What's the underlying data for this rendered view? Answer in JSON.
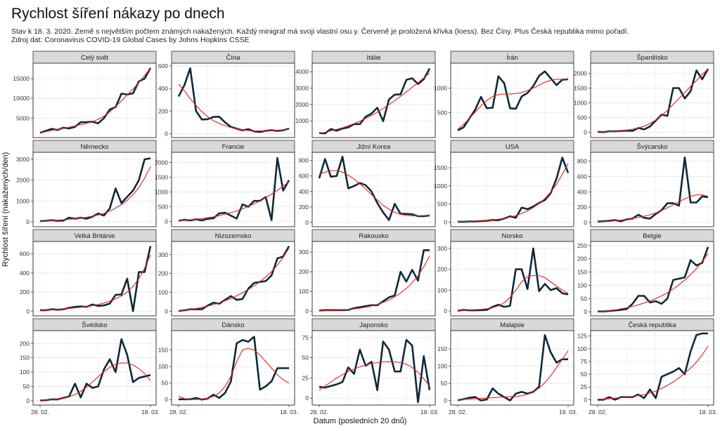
{
  "title": "Rychlost šíření nákazy po dnech",
  "subtitle_line1": "Stav k 18. 3. 2020. Země s největším počtem známých nakažených. Každý minigraf má svoji vlastní osu y. Červeně je proložená křivka (loess). Bez Číny. Plus Česká republika mimo pořadí.",
  "subtitle_line2": "Zdroj dat: Coronavirus COVID-19 Global Cases by Johns Hopkins CSSE",
  "ylabel": "Rychlost šíření (nakažených/den)",
  "xlabel": "Datum (posledních 20 dnů)",
  "x_tick_first": "28. 02.",
  "x_tick_last": "18. 03.",
  "colors": {
    "line": "#0d2a3a",
    "loess": "#e8201f",
    "strip": "#d9d9d9",
    "grid": "#e5e5e5"
  },
  "chart_data": [
    {
      "type": "line",
      "panel": "Celý svět",
      "yticks": [
        5000,
        10000,
        15000
      ],
      "ylim": [
        800,
        18200
      ],
      "values": [
        1300,
        1800,
        2300,
        2000,
        2600,
        2400,
        2800,
        4000,
        4000,
        4100,
        3700,
        5000,
        7200,
        7800,
        11200,
        11000,
        11300,
        14300,
        15000,
        17700
      ],
      "loess": [
        1200,
        1600,
        1900,
        2200,
        2400,
        2700,
        3000,
        3400,
        3700,
        4100,
        4700,
        5500,
        6600,
        7900,
        9400,
        10900,
        12400,
        14000,
        15800,
        17600
      ]
    },
    {
      "type": "line",
      "panel": "Čína",
      "yticks": [
        0,
        200,
        400,
        600
      ],
      "ylim": [
        -10,
        600
      ],
      "values": [
        330,
        430,
        580,
        200,
        125,
        128,
        148,
        150,
        100,
        60,
        45,
        30,
        40,
        20,
        15,
        25,
        30,
        25,
        30,
        45
      ],
      "loess": [
        440,
        380,
        310,
        250,
        195,
        150,
        115,
        90,
        70,
        55,
        45,
        35,
        28,
        25,
        24,
        25,
        27,
        30,
        34,
        38
      ]
    },
    {
      "type": "line",
      "panel": "Itálie",
      "yticks": [
        1000,
        2000,
        3000,
        4000
      ],
      "ylim": [
        150,
        4350
      ],
      "values": [
        250,
        240,
        500,
        400,
        530,
        600,
        800,
        800,
        1250,
        1450,
        1800,
        980,
        2300,
        2600,
        2620,
        3500,
        3600,
        3250,
        3550,
        4200
      ],
      "loess": [
        220,
        300,
        390,
        480,
        580,
        700,
        830,
        980,
        1150,
        1330,
        1530,
        1750,
        1990,
        2240,
        2500,
        2770,
        3050,
        3330,
        3620,
        3920
      ]
    },
    {
      "type": "line",
      "panel": "Írán",
      "yticks": [
        500,
        1000
      ],
      "ylim": [
        50,
        1450
      ],
      "values": [
        140,
        200,
        380,
        560,
        820,
        590,
        600,
        1240,
        1100,
        590,
        580,
        830,
        900,
        1040,
        1250,
        1340,
        1200,
        1060,
        1170,
        1180
      ],
      "loess": [
        160,
        260,
        380,
        510,
        640,
        750,
        830,
        870,
        880,
        880,
        890,
        910,
        950,
        1000,
        1060,
        1120,
        1160,
        1180,
        1180,
        1180
      ]
    },
    {
      "type": "line",
      "panel": "Španělsko",
      "yticks": [
        0,
        500,
        1000,
        1500,
        2000
      ],
      "ylim": [
        -80,
        2250
      ],
      "values": [
        20,
        10,
        40,
        40,
        50,
        60,
        50,
        150,
        100,
        200,
        400,
        600,
        560,
        1500,
        1500,
        1150,
        1400,
        2100,
        1800,
        2150
      ],
      "loess": [
        10,
        20,
        30,
        40,
        60,
        80,
        110,
        150,
        210,
        300,
        420,
        570,
        750,
        950,
        1150,
        1350,
        1560,
        1760,
        1960,
        2150
      ]
    },
    {
      "type": "line",
      "panel": "Německo",
      "yticks": [
        0,
        1000,
        2000,
        3000
      ],
      "ylim": [
        -100,
        3200
      ],
      "values": [
        30,
        50,
        80,
        50,
        60,
        200,
        150,
        200,
        150,
        250,
        400,
        300,
        650,
        1600,
        900,
        1200,
        1500,
        2000,
        3000,
        3050
      ],
      "loess": [
        20,
        40,
        60,
        80,
        100,
        120,
        150,
        180,
        220,
        270,
        330,
        410,
        520,
        660,
        830,
        1030,
        1300,
        1650,
        2100,
        2650
      ]
    },
    {
      "type": "line",
      "panel": "Francie",
      "yticks": [
        0,
        500,
        1000,
        1500,
        2000
      ],
      "ylim": [
        -80,
        2250
      ],
      "values": [
        30,
        60,
        40,
        80,
        40,
        90,
        110,
        280,
        300,
        200,
        100,
        580,
        500,
        700,
        700,
        830,
        50,
        2150,
        1050,
        1400
      ],
      "loess": [
        30,
        45,
        60,
        80,
        100,
        130,
        160,
        200,
        250,
        300,
        360,
        430,
        510,
        600,
        700,
        810,
        930,
        1060,
        1200,
        1350
      ]
    },
    {
      "type": "line",
      "panel": "Jižní Korea",
      "yticks": [
        0,
        200,
        400,
        600,
        800
      ],
      "ylim": [
        -20,
        870
      ],
      "values": [
        570,
        820,
        590,
        600,
        850,
        440,
        470,
        510,
        480,
        400,
        250,
        130,
        30,
        240,
        110,
        110,
        105,
        80,
        80,
        90
      ],
      "loess": [
        620,
        650,
        670,
        670,
        650,
        610,
        560,
        500,
        430,
        360,
        290,
        220,
        170,
        130,
        105,
        90,
        85,
        85,
        88,
        92
      ]
    },
    {
      "type": "line",
      "panel": "USA",
      "yticks": [
        0,
        500,
        1000,
        1500
      ],
      "ylim": [
        -50,
        1850
      ],
      "values": [
        10,
        10,
        20,
        20,
        30,
        40,
        60,
        50,
        100,
        160,
        120,
        400,
        360,
        430,
        530,
        610,
        800,
        1200,
        1780,
        1360
      ],
      "loess": [
        10,
        15,
        20,
        25,
        35,
        45,
        60,
        80,
        105,
        140,
        180,
        240,
        310,
        400,
        510,
        650,
        830,
        1050,
        1320,
        1620
      ]
    },
    {
      "type": "line",
      "panel": "Švýcarsko",
      "yticks": [
        0,
        200,
        400,
        600,
        800
      ],
      "ylim": [
        -20,
        880
      ],
      "values": [
        10,
        15,
        20,
        30,
        15,
        40,
        50,
        100,
        60,
        50,
        110,
        160,
        250,
        250,
        220,
        850,
        260,
        260,
        340,
        330
      ],
      "loess": [
        5,
        10,
        15,
        22,
        30,
        40,
        52,
        65,
        80,
        100,
        125,
        155,
        190,
        230,
        270,
        310,
        340,
        360,
        360,
        340
      ]
    },
    {
      "type": "line",
      "panel": "Velká Británie",
      "yticks": [
        0,
        200,
        400,
        600
      ],
      "ylim": [
        -20,
        700
      ],
      "values": [
        10,
        10,
        20,
        15,
        20,
        35,
        45,
        50,
        45,
        70,
        55,
        60,
        80,
        170,
        175,
        340,
        0,
        410,
        410,
        680
      ],
      "loess": [
        8,
        10,
        14,
        18,
        23,
        28,
        34,
        40,
        48,
        58,
        70,
        85,
        105,
        130,
        160,
        200,
        260,
        340,
        450,
        590
      ]
    },
    {
      "type": "line",
      "panel": "Nizozemsko",
      "yticks": [
        0,
        100,
        200,
        300
      ],
      "ylim": [
        -10,
        355
      ],
      "values": [
        1,
        5,
        10,
        10,
        10,
        30,
        45,
        40,
        60,
        80,
        60,
        65,
        120,
        150,
        155,
        160,
        190,
        280,
        290,
        345
      ],
      "loess": [
        2,
        5,
        9,
        14,
        20,
        27,
        35,
        44,
        55,
        68,
        82,
        98,
        115,
        135,
        157,
        182,
        210,
        245,
        285,
        335
      ]
    },
    {
      "type": "line",
      "panel": "Rakousko",
      "yticks": [
        0,
        100,
        200,
        300
      ],
      "ylim": [
        -10,
        340
      ],
      "values": [
        3,
        5,
        5,
        5,
        5,
        6,
        15,
        20,
        25,
        30,
        30,
        50,
        70,
        80,
        200,
        150,
        210,
        155,
        310,
        310
      ],
      "loess": [
        1,
        2,
        3,
        4,
        6,
        8,
        11,
        15,
        20,
        26,
        34,
        44,
        57,
        73,
        92,
        115,
        145,
        180,
        225,
        280
      ]
    },
    {
      "type": "line",
      "panel": "Norsko",
      "yticks": [
        0,
        100,
        200,
        300
      ],
      "ylim": [
        -10,
        320
      ],
      "values": [
        1,
        5,
        3,
        3,
        4,
        5,
        20,
        30,
        20,
        25,
        200,
        200,
        105,
        300,
        95,
        130,
        100,
        110,
        85,
        80
      ],
      "loess": [
        2,
        3,
        5,
        6,
        8,
        11,
        16,
        25,
        40,
        65,
        100,
        140,
        165,
        170,
        170,
        160,
        140,
        120,
        100,
        85
      ]
    },
    {
      "type": "line",
      "panel": "Belgie",
      "yticks": [
        0,
        50,
        100,
        150,
        200,
        250
      ],
      "ylim": [
        -5,
        255
      ],
      "values": [
        1,
        1,
        3,
        5,
        7,
        10,
        30,
        60,
        60,
        35,
        40,
        30,
        50,
        120,
        125,
        130,
        195,
        175,
        185,
        245
      ],
      "loess": [
        0,
        2,
        4,
        7,
        11,
        15,
        20,
        26,
        33,
        41,
        50,
        60,
        72,
        86,
        102,
        120,
        140,
        163,
        190,
        220
      ]
    },
    {
      "type": "line",
      "panel": "Švédsko",
      "yticks": [
        0,
        50,
        100,
        150,
        200
      ],
      "ylim": [
        -5,
        235
      ],
      "values": [
        1,
        2,
        5,
        5,
        10,
        15,
        60,
        12,
        60,
        45,
        50,
        110,
        145,
        100,
        215,
        160,
        65,
        80,
        85,
        90
      ],
      "loess": [
        2,
        3,
        4,
        6,
        9,
        14,
        22,
        33,
        48,
        65,
        84,
        102,
        117,
        127,
        132,
        132,
        125,
        112,
        95,
        70
      ]
    },
    {
      "type": "line",
      "panel": "Dánsko",
      "yticks": [
        0,
        50,
        100,
        150
      ],
      "ylim": [
        -8,
        200
      ],
      "values": [
        1,
        1,
        1,
        5,
        0,
        3,
        15,
        5,
        20,
        55,
        170,
        180,
        175,
        190,
        30,
        40,
        55,
        95,
        95,
        95
      ],
      "loess": [
        10,
        3,
        0,
        0,
        1,
        4,
        10,
        20,
        40,
        70,
        115,
        150,
        155,
        150,
        135,
        115,
        95,
        75,
        60,
        50
      ]
    },
    {
      "type": "line",
      "panel": "Japonsko",
      "yticks": [
        0,
        25,
        50,
        75
      ],
      "ylim": [
        -5,
        80
      ],
      "values": [
        14,
        13,
        15,
        17,
        20,
        38,
        30,
        60,
        40,
        45,
        10,
        70,
        60,
        33,
        33,
        72,
        65,
        -5,
        52,
        10
      ],
      "loess": [
        10,
        15,
        20,
        25,
        29,
        33,
        36,
        39,
        41,
        43,
        44,
        45,
        45,
        45,
        44,
        42,
        38,
        32,
        24,
        15
      ]
    },
    {
      "type": "line",
      "panel": "Malajsie",
      "yticks": [
        0,
        50,
        100,
        150
      ],
      "ylim": [
        -5,
        195
      ],
      "values": [
        1,
        4,
        8,
        10,
        0,
        3,
        35,
        20,
        10,
        0,
        20,
        25,
        20,
        25,
        40,
        190,
        140,
        110,
        120,
        120
      ],
      "loess": [
        2,
        3,
        4,
        5,
        6,
        7,
        8,
        9,
        10,
        11,
        12,
        14,
        18,
        25,
        36,
        52,
        72,
        96,
        120,
        145
      ]
    },
    {
      "type": "line",
      "panel": "Česká republika",
      "yticks": [
        0,
        25,
        50,
        75,
        100,
        125
      ],
      "ylim": [
        -5,
        130
      ],
      "values": [
        0,
        0,
        5,
        0,
        5,
        5,
        5,
        10,
        3,
        20,
        3,
        45,
        50,
        55,
        62,
        50,
        95,
        127,
        130,
        130
      ],
      "loess": [
        1,
        1,
        2,
        3,
        4,
        5,
        6,
        8,
        10,
        13,
        17,
        22,
        28,
        35,
        43,
        52,
        62,
        74,
        88,
        105
      ]
    }
  ]
}
